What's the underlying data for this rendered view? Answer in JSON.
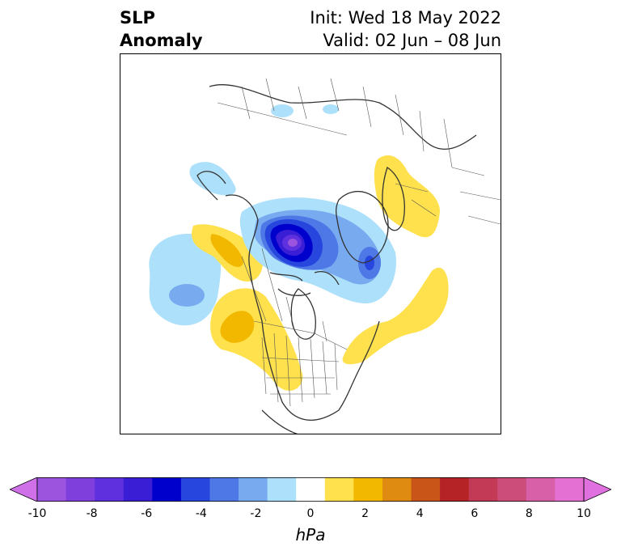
{
  "title": {
    "left_line1": "SLP",
    "left_line2": "Anomaly",
    "init": "Init: Wed 18 May 2022",
    "valid": "Valid: 02 Jun – 08 Jun"
  },
  "colorbar": {
    "units": "hPa",
    "ticks": [
      "-10",
      "-8",
      "-6",
      "-4",
      "-2",
      "0",
      "2",
      "4",
      "6",
      "8",
      "10"
    ],
    "bins": [
      {
        "range": "-10 to -9",
        "color": "#9c54de"
      },
      {
        "range": "-9 to -8",
        "color": "#7e3fdc"
      },
      {
        "range": "-8 to -7",
        "color": "#5f31de"
      },
      {
        "range": "-7 to -6",
        "color": "#3a1ed6"
      },
      {
        "range": "-6 to -5",
        "color": "#0000cc"
      },
      {
        "range": "-5 to -4",
        "color": "#2646de"
      },
      {
        "range": "-4 to -3",
        "color": "#4d78e6"
      },
      {
        "range": "-3 to -2",
        "color": "#78aaf0"
      },
      {
        "range": "-2 to -1",
        "color": "#ade0fa"
      },
      {
        "range": "-1 to 1",
        "color": "#ffffff"
      },
      {
        "range": "1 to 2",
        "color": "#fee14d"
      },
      {
        "range": "2 to 3",
        "color": "#f2b800"
      },
      {
        "range": "3 to 4",
        "color": "#df8a10"
      },
      {
        "range": "4 to 5",
        "color": "#c95518"
      },
      {
        "range": "5 to 6",
        "color": "#b52326"
      },
      {
        "range": "6 to 7",
        "color": "#c23a55"
      },
      {
        "range": "7 to 8",
        "color": "#cc4c7a"
      },
      {
        "range": "8 to 9",
        "color": "#d860a8"
      },
      {
        "range": "9 to 10",
        "color": "#e570d4"
      }
    ],
    "under_color": "#d070e8",
    "over_color": "#e070e0"
  },
  "map": {
    "projection": "north-polar stereographic",
    "features": [
      "coastlines",
      "country borders",
      "US state borders",
      "Canadian province borders"
    ],
    "anomalies": [
      {
        "region": "Arctic Ocean / Canadian Arctic Archipelago",
        "sign": "negative",
        "min_hpa": -10
      },
      {
        "region": "Western Russia",
        "sign": "positive",
        "max_hpa": 2
      },
      {
        "region": "Gulf of Alaska / Western Canada",
        "sign": "positive",
        "max_hpa": 3
      },
      {
        "region": "North Pacific",
        "sign": "negative",
        "min_hpa": -3
      },
      {
        "region": "Western United States",
        "sign": "positive",
        "max_hpa": 2
      },
      {
        "region": "North Atlantic / Newfoundland",
        "sign": "positive",
        "max_hpa": 2
      }
    ]
  }
}
